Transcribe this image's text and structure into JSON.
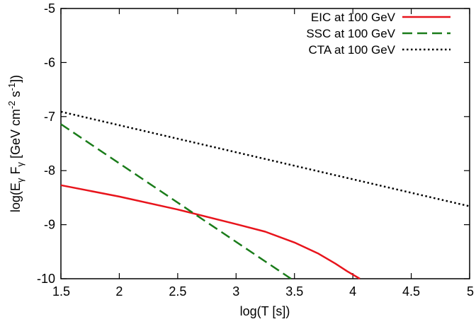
{
  "chart_data": {
    "type": "line",
    "xlabel": "log(T [s])",
    "ylabel_parts": {
      "prefix": "log(E",
      "sub1": "γ",
      "mid1": " F",
      "sub2": "γ",
      "mid2": " [GeV cm",
      "sup1": "-2",
      "mid3": " s",
      "sup2": "-1",
      "suffix": "])"
    },
    "xlim": [
      1.5,
      5
    ],
    "ylim": [
      -10,
      -5
    ],
    "xticks": [
      {
        "value": 1.5,
        "label": "1.5"
      },
      {
        "value": 2,
        "label": "2"
      },
      {
        "value": 2.5,
        "label": "2.5"
      },
      {
        "value": 3,
        "label": "3"
      },
      {
        "value": 3.5,
        "label": "3.5"
      },
      {
        "value": 4,
        "label": "4"
      },
      {
        "value": 4.5,
        "label": "4.5"
      },
      {
        "value": 5,
        "label": "5"
      }
    ],
    "yticks": [
      {
        "value": -5,
        "label": "-5"
      },
      {
        "value": -6,
        "label": "-6"
      },
      {
        "value": -7,
        "label": "-7"
      },
      {
        "value": -8,
        "label": "-8"
      },
      {
        "value": -9,
        "label": "-9"
      },
      {
        "value": -10,
        "label": "-10"
      }
    ],
    "grid": false,
    "legend_position": "top-right",
    "series": [
      {
        "name": "EIC at 100 GeV",
        "color": "#e8141c",
        "style": "solid",
        "points": [
          [
            1.5,
            -8.27
          ],
          [
            2.0,
            -8.48
          ],
          [
            2.5,
            -8.72
          ],
          [
            3.0,
            -8.99
          ],
          [
            3.25,
            -9.13
          ],
          [
            3.5,
            -9.33
          ],
          [
            3.7,
            -9.53
          ],
          [
            3.85,
            -9.72
          ],
          [
            3.95,
            -9.86
          ],
          [
            4.06,
            -10.0
          ]
        ]
      },
      {
        "name": "SSC at 100 GeV",
        "color": "#1a7c1a",
        "style": "dashed",
        "points": [
          [
            1.5,
            -7.14
          ],
          [
            3.47,
            -10.0
          ]
        ]
      },
      {
        "name": "CTA at 100 GeV",
        "color": "#000000",
        "style": "dotted",
        "points": [
          [
            1.5,
            -6.91
          ],
          [
            5.0,
            -8.66
          ]
        ]
      }
    ]
  }
}
